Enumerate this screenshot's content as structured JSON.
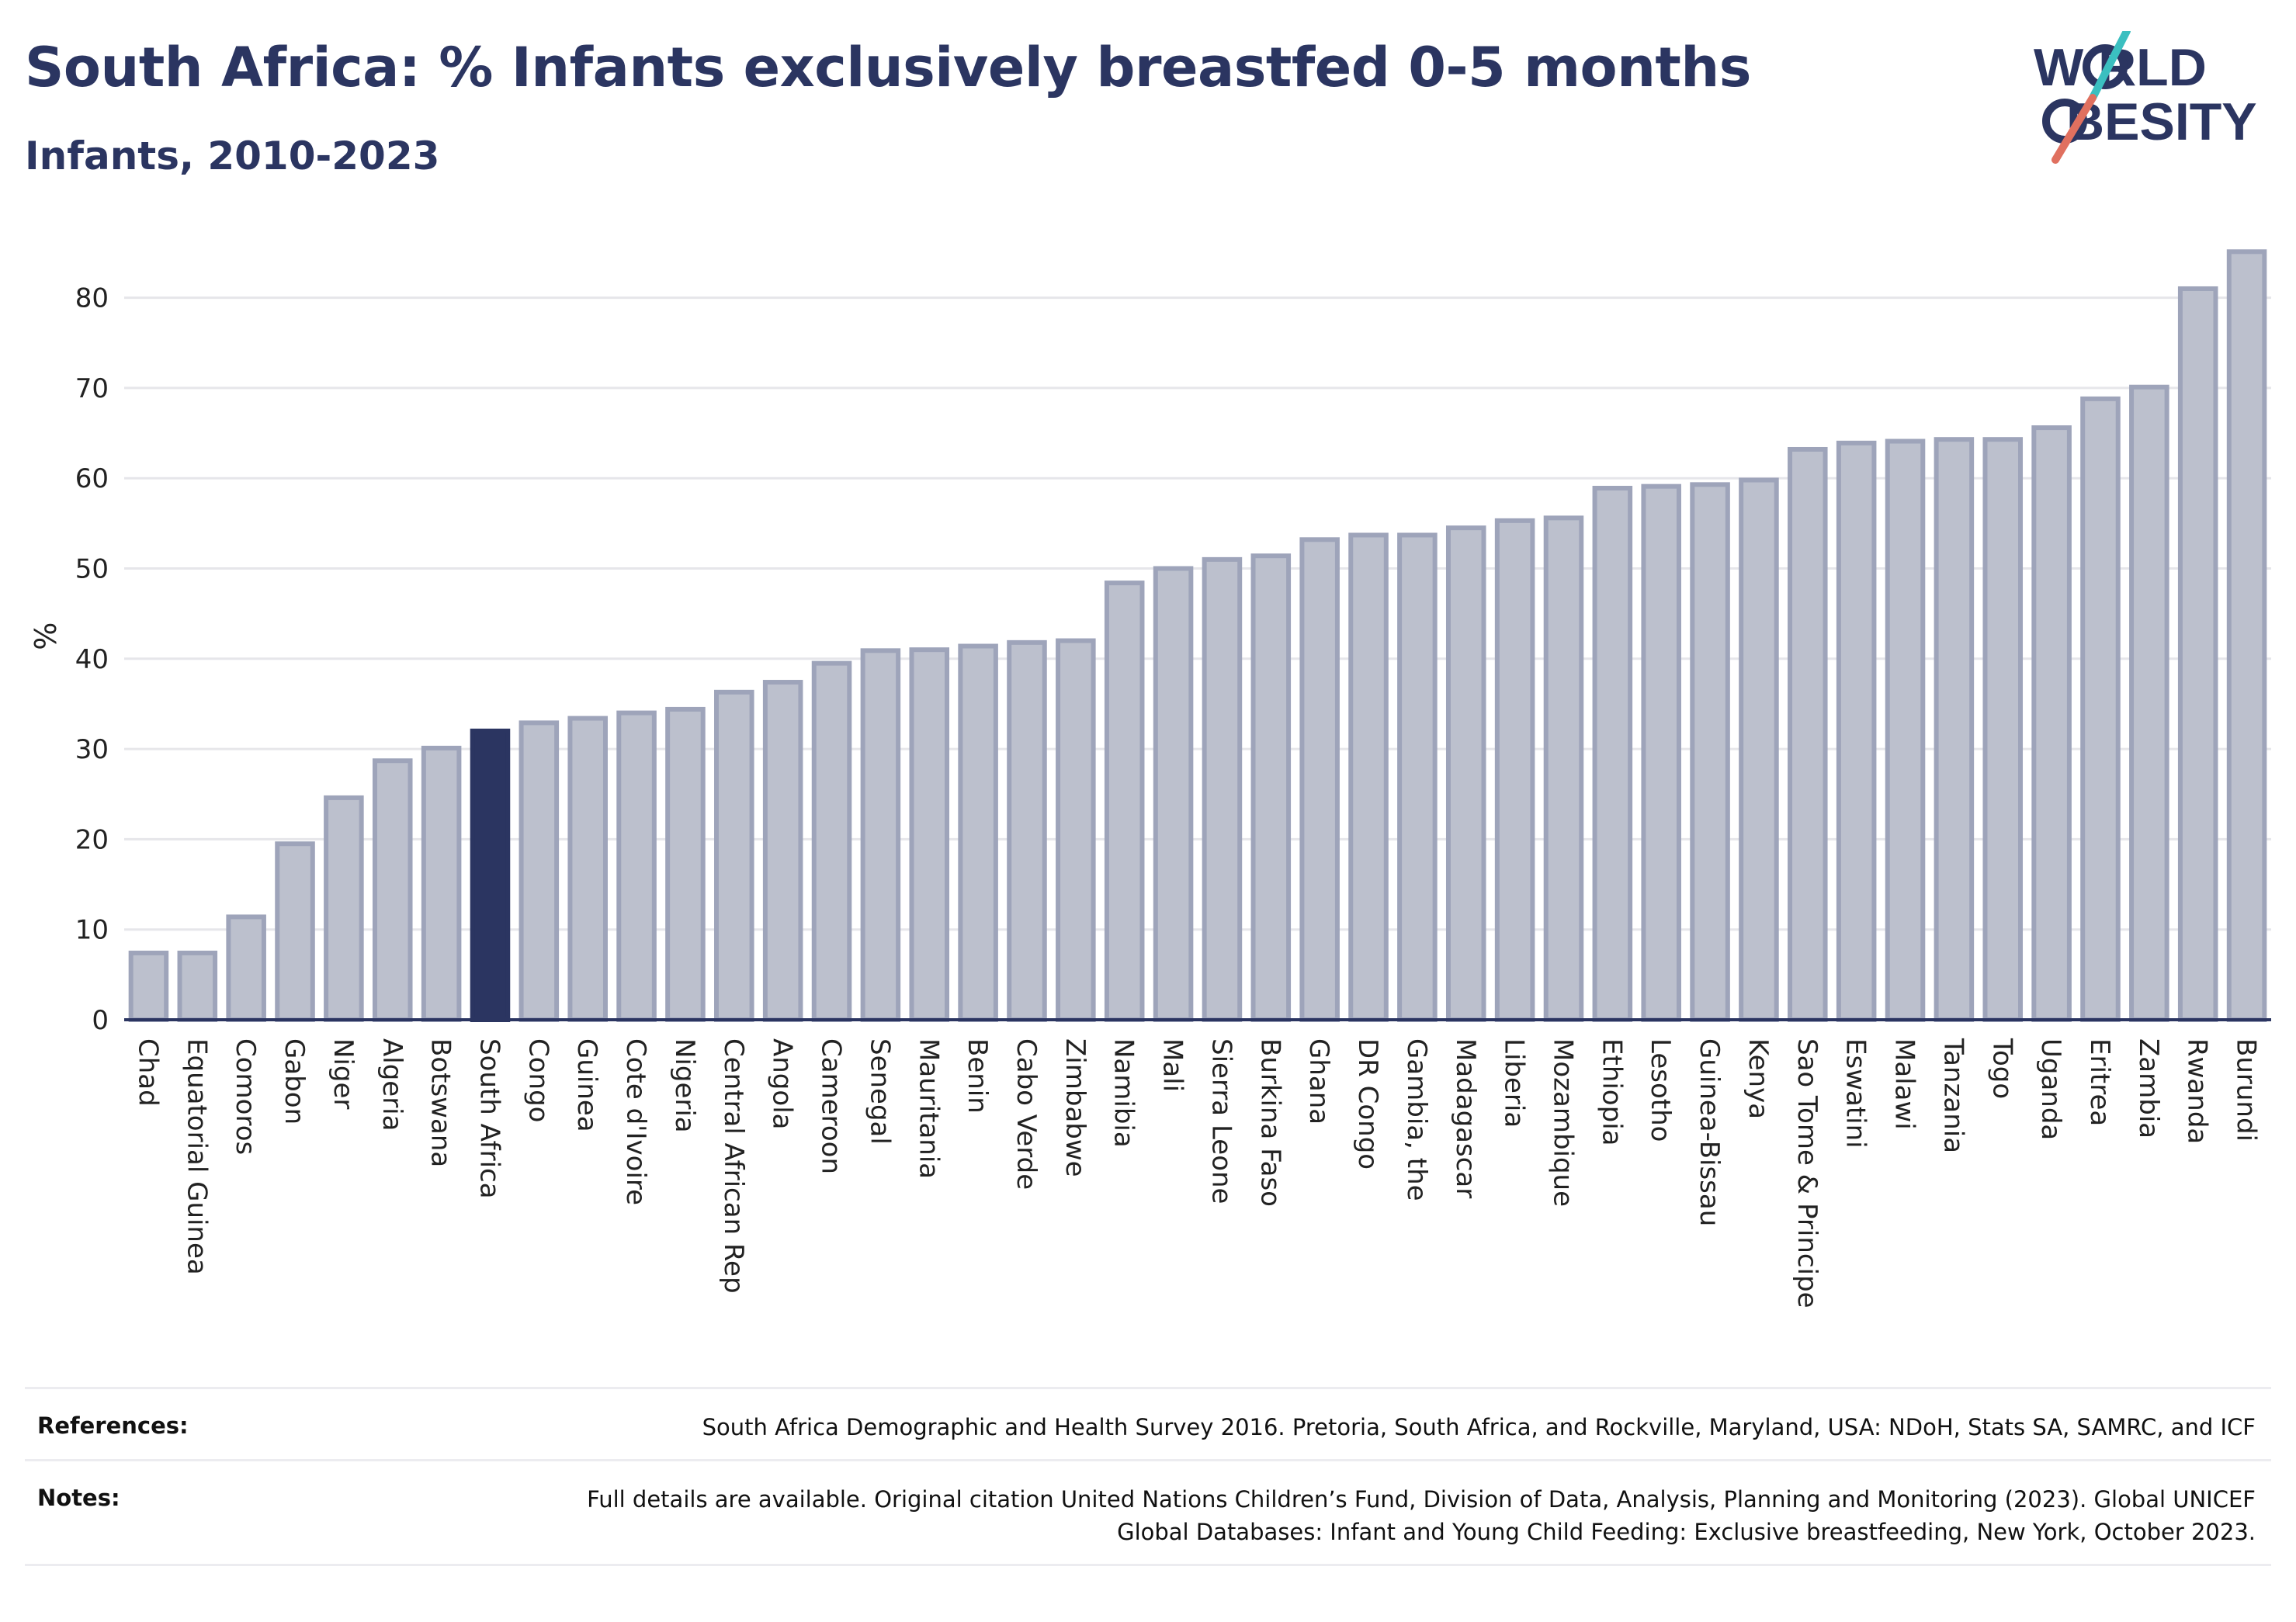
{
  "header": {
    "title": "South Africa: % Infants exclusively breastfed 0-5 months",
    "subtitle": "Infants, 2010-2023"
  },
  "logo": {
    "line1": "W RLD",
    "line2": "BESITY",
    "text": "WORLD OBESITY",
    "colors": {
      "text": "#2b3561",
      "slash_teal": "#3bbfc0",
      "slash_coral": "#e0705f"
    }
  },
  "chart_data": {
    "type": "bar",
    "ylabel": "%",
    "ylim": [
      0,
      85
    ],
    "yticks": [
      0,
      10,
      20,
      30,
      40,
      50,
      60,
      70,
      80
    ],
    "grid": true,
    "highlight": "South Africa",
    "colors": {
      "bar": "#bcc0cd",
      "bar_border": "#9ea4ba",
      "highlight": "#2b3561",
      "axis": "#2b3561",
      "grid": "#e6e6ea"
    },
    "categories": [
      "Chad",
      "Equatorial Guinea",
      "Comoros",
      "Gabon",
      "Niger",
      "Algeria",
      "Botswana",
      "South Africa",
      "Congo",
      "Guinea",
      "Cote d'Ivoire",
      "Nigeria",
      "Central African Rep",
      "Angola",
      "Cameroon",
      "Senegal",
      "Mauritania",
      "Benin",
      "Cabo Verde",
      "Zimbabwe",
      "Namibia",
      "Mali",
      "Sierra Leone",
      "Burkina Faso",
      "Ghana",
      "DR Congo",
      "Gambia, the",
      "Madagascar",
      "Liberia",
      "Mozambique",
      "Ethiopia",
      "Lesotho",
      "Guinea-Bissau",
      "Kenya",
      "Sao Tome & Principe",
      "Eswatini",
      "Malawi",
      "Tanzania",
      "Togo",
      "Uganda",
      "Eritrea",
      "Zambia",
      "Rwanda",
      "Burundi"
    ],
    "values": [
      7.4,
      7.4,
      11.4,
      19.5,
      24.6,
      28.7,
      30.1,
      32.0,
      32.9,
      33.4,
      34.0,
      34.4,
      36.3,
      37.4,
      39.5,
      40.9,
      41.0,
      41.4,
      41.8,
      42.0,
      48.4,
      50.0,
      51.0,
      51.4,
      53.2,
      53.7,
      53.7,
      54.5,
      55.3,
      55.6,
      58.9,
      59.1,
      59.3,
      59.8,
      63.2,
      63.9,
      64.1,
      64.3,
      64.3,
      65.6,
      68.8,
      70.1,
      81.0,
      85.1
    ]
  },
  "footer": {
    "references_label": "References:",
    "references_text": "South Africa Demographic and Health Survey 2016. Pretoria, South Africa, and Rockville, Maryland, USA: NDoH, Stats SA, SAMRC, and ICF",
    "notes_label": "Notes:",
    "notes_text": "Full details are available. Original citation United Nations Children’s Fund, Division of Data, Analysis, Planning and Monitoring (2023). Global UNICEF Global Databases: Infant and Young Child Feeding: Exclusive breastfeeding, New York, October 2023."
  }
}
